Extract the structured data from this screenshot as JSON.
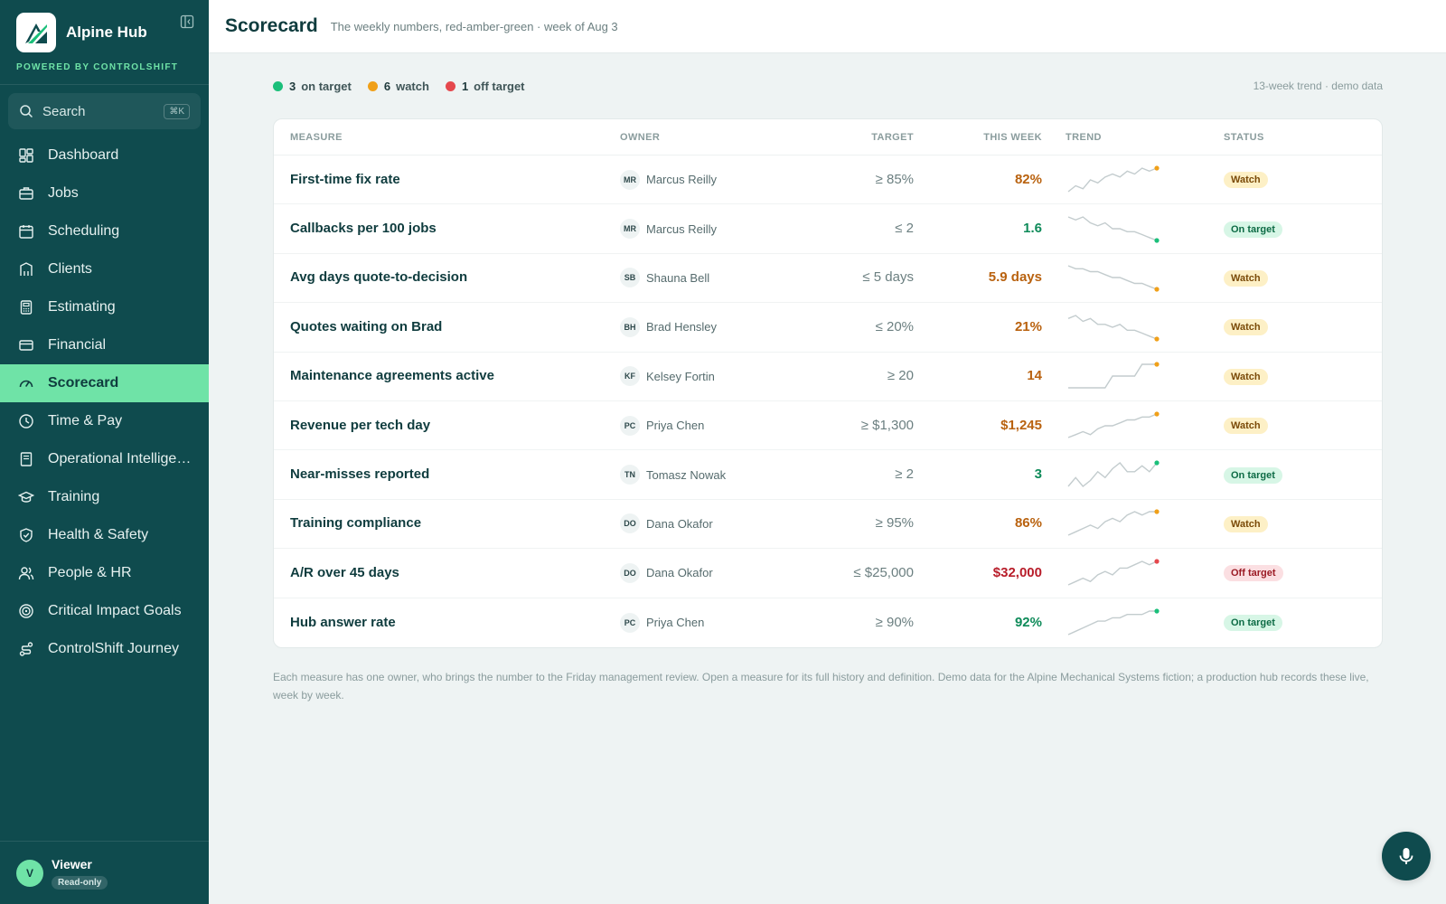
{
  "sidebar": {
    "app_name": "Alpine Hub",
    "powered_by": "POWERED BY CONTROLSHIFT",
    "search": {
      "label": "Search",
      "shortcut": "⌘K"
    },
    "items": [
      {
        "label": "Dashboard",
        "icon": "dashboard-icon"
      },
      {
        "label": "Jobs",
        "icon": "briefcase-icon"
      },
      {
        "label": "Scheduling",
        "icon": "calendar-icon"
      },
      {
        "label": "Clients",
        "icon": "building-icon"
      },
      {
        "label": "Estimating",
        "icon": "calculator-icon"
      },
      {
        "label": "Financial",
        "icon": "credit-card-icon"
      },
      {
        "label": "Scorecard",
        "icon": "gauge-icon",
        "active": true
      },
      {
        "label": "Time & Pay",
        "icon": "clock-icon"
      },
      {
        "label": "Operational Intelligence",
        "icon": "book-icon"
      },
      {
        "label": "Training",
        "icon": "graduation-cap-icon"
      },
      {
        "label": "Health & Safety",
        "icon": "shield-check-icon"
      },
      {
        "label": "People & HR",
        "icon": "users-icon"
      },
      {
        "label": "Critical Impact Goals",
        "icon": "target-icon"
      },
      {
        "label": "ControlShift Journey",
        "icon": "route-icon"
      }
    ],
    "user": {
      "initial": "V",
      "name": "Viewer",
      "role": "Read-only"
    }
  },
  "header": {
    "title": "Scorecard",
    "subtitle": "The weekly numbers, red-amber-green · week of Aug 3"
  },
  "summary": {
    "on_target": {
      "count": "3",
      "label": "on target",
      "color": "#1bbf7a"
    },
    "watch": {
      "count": "6",
      "label": "watch",
      "color": "#f0a019"
    },
    "off_target": {
      "count": "1",
      "label": "off target",
      "color": "#e5484d"
    },
    "note": "13-week trend · demo data"
  },
  "table": {
    "headers": {
      "measure": "MEASURE",
      "owner": "OWNER",
      "target": "TARGET",
      "week": "THIS WEEK",
      "trend": "TREND",
      "status": "STATUS"
    },
    "rows": [
      {
        "measure": "First-time fix rate",
        "initials": "MR",
        "owner": "Marcus Reilly",
        "target": "≥ 85%",
        "week": "82%",
        "status": "Watch",
        "level": "watch",
        "trend": [
          2,
          4,
          3,
          6,
          5,
          7,
          8,
          7,
          9,
          8,
          10,
          9,
          10
        ]
      },
      {
        "measure": "Callbacks per 100 jobs",
        "initials": "MR",
        "owner": "Marcus Reilly",
        "target": "≤ 2",
        "week": "1.6",
        "status": "On target",
        "level": "on",
        "trend": [
          10,
          9,
          10,
          8,
          7,
          8,
          6,
          6,
          5,
          5,
          4,
          3,
          2
        ]
      },
      {
        "measure": "Avg days quote-to-decision",
        "initials": "SB",
        "owner": "Shauna Bell",
        "target": "≤ 5 days",
        "week": "5.9 days",
        "status": "Watch",
        "level": "watch",
        "trend": [
          10,
          9,
          9,
          8,
          8,
          7,
          6,
          6,
          5,
          4,
          4,
          3,
          2
        ]
      },
      {
        "measure": "Quotes waiting on Brad",
        "initials": "BH",
        "owner": "Brad Hensley",
        "target": "≤ 20%",
        "week": "21%",
        "status": "Watch",
        "level": "watch",
        "trend": [
          9,
          10,
          8,
          9,
          7,
          7,
          6,
          7,
          5,
          5,
          4,
          3,
          2
        ]
      },
      {
        "measure": "Maintenance agreements active",
        "initials": "KF",
        "owner": "Kelsey Fortin",
        "target": "≥ 20",
        "week": "14",
        "status": "Watch",
        "level": "watch",
        "trend": [
          2,
          2,
          2,
          2,
          2,
          2,
          5,
          5,
          5,
          5,
          8,
          8,
          8
        ]
      },
      {
        "measure": "Revenue per tech day",
        "initials": "PC",
        "owner": "Priya Chen",
        "target": "≥ $1,300",
        "week": "$1,245",
        "status": "Watch",
        "level": "watch",
        "trend": [
          2,
          3,
          4,
          3,
          5,
          6,
          6,
          7,
          8,
          8,
          9,
          9,
          10
        ]
      },
      {
        "measure": "Near-misses reported",
        "initials": "TN",
        "owner": "Tomasz Nowak",
        "target": "≥ 2",
        "week": "3",
        "status": "On target",
        "level": "on",
        "trend": [
          1,
          4,
          1,
          3,
          6,
          4,
          7,
          9,
          6,
          6,
          8,
          6,
          9
        ]
      },
      {
        "measure": "Training compliance",
        "initials": "DO",
        "owner": "Dana Okafor",
        "target": "≥ 95%",
        "week": "86%",
        "status": "Watch",
        "level": "watch",
        "trend": [
          2,
          3,
          4,
          5,
          4,
          6,
          7,
          6,
          8,
          9,
          8,
          9,
          9
        ]
      },
      {
        "measure": "A/R over 45 days",
        "initials": "DO",
        "owner": "Dana Okafor",
        "target": "≤ $25,000",
        "week": "$32,000",
        "status": "Off target",
        "level": "off",
        "trend": [
          2,
          3,
          4,
          3,
          5,
          6,
          5,
          7,
          7,
          8,
          9,
          8,
          9
        ]
      },
      {
        "measure": "Hub answer rate",
        "initials": "PC",
        "owner": "Priya Chen",
        "target": "≥ 90%",
        "week": "92%",
        "status": "On target",
        "level": "on",
        "trend": [
          2,
          3,
          4,
          5,
          6,
          6,
          7,
          7,
          8,
          8,
          8,
          9,
          9
        ]
      }
    ]
  },
  "footnote": "Each measure has one owner, who brings the number to the Friday management review. Open a measure for its full history and definition. Demo data for the Alpine Mechanical Systems fiction; a production hub records these live, week by week.",
  "colors": {
    "sidebar": "#0f4b4e",
    "accent": "#6fe3a7",
    "watch": "#f0a019",
    "on": "#1bbf7a",
    "off": "#e5484d",
    "spark_line": "#c3ccce"
  }
}
